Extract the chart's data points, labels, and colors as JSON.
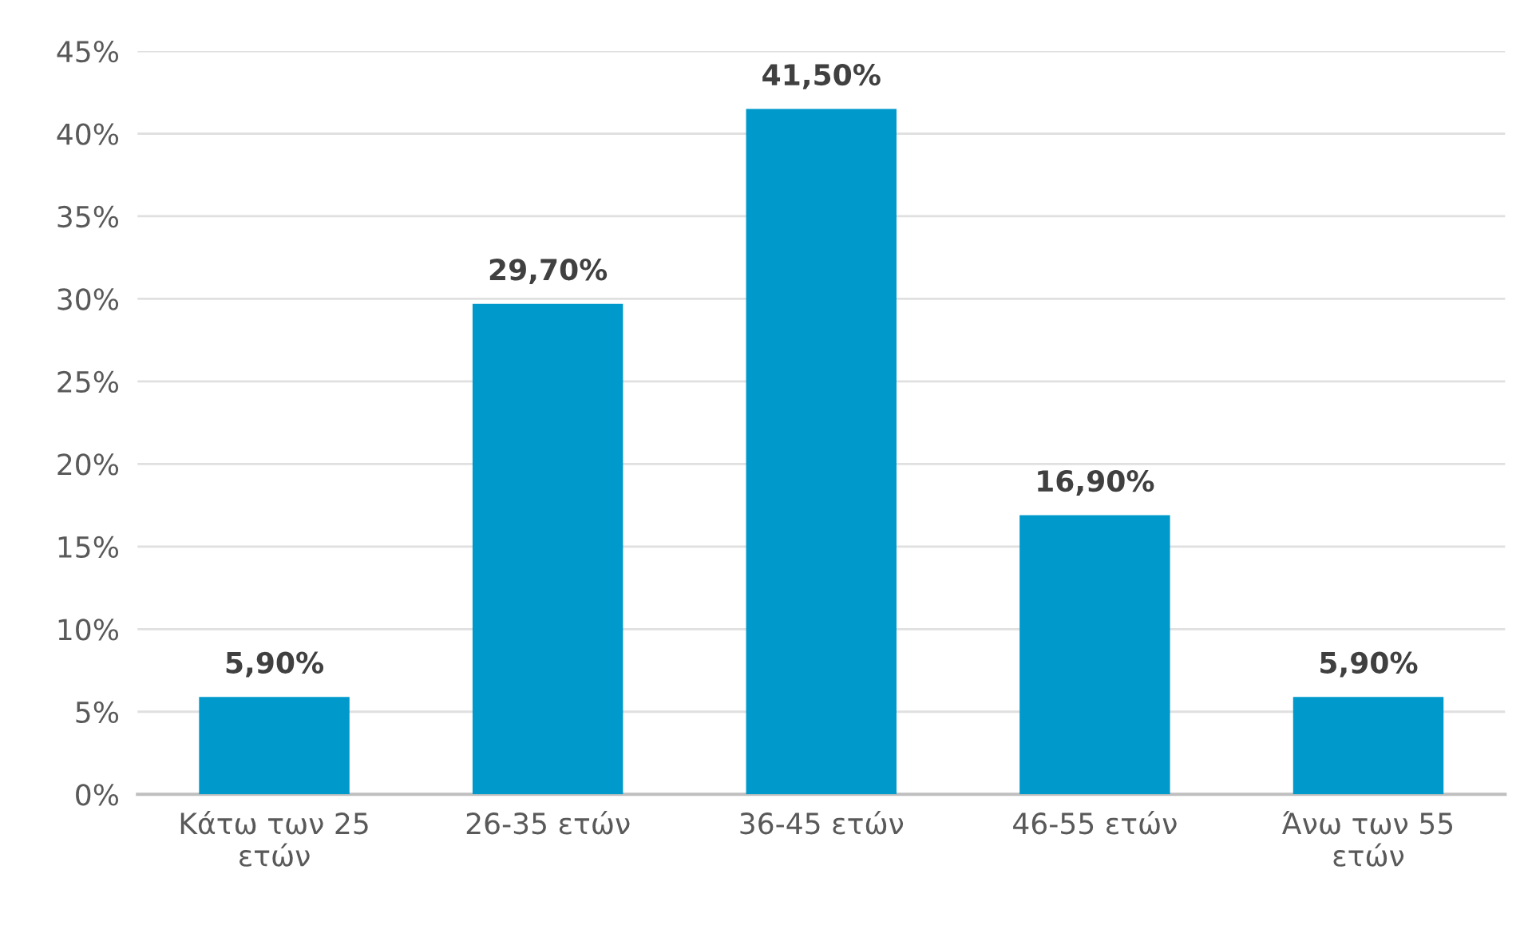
{
  "chart_data": {
    "type": "bar",
    "categories": [
      "Κάτω των 25 ετών",
      "26-35 ετών",
      "36-45 ετών",
      "46-55 ετών",
      "Άνω των 55 ετών"
    ],
    "values": [
      5.9,
      29.7,
      41.5,
      16.9,
      5.9
    ],
    "value_labels": [
      "5,90%",
      "29,70%",
      "41,50%",
      "16,90%",
      "5,90%"
    ],
    "color": "#0099cc",
    "ylim": [
      0,
      45
    ],
    "yticks": [
      {
        "value": 0,
        "label": "0%"
      },
      {
        "value": 5,
        "label": "5%"
      },
      {
        "value": 10,
        "label": "10%"
      },
      {
        "value": 15,
        "label": "15%"
      },
      {
        "value": 20,
        "label": "20%"
      },
      {
        "value": 25,
        "label": "25%"
      },
      {
        "value": 30,
        "label": "30%"
      },
      {
        "value": 35,
        "label": "35%"
      },
      {
        "value": 40,
        "label": "40%"
      },
      {
        "value": 45,
        "label": "45%"
      }
    ],
    "grid": "y",
    "legend": false
  }
}
